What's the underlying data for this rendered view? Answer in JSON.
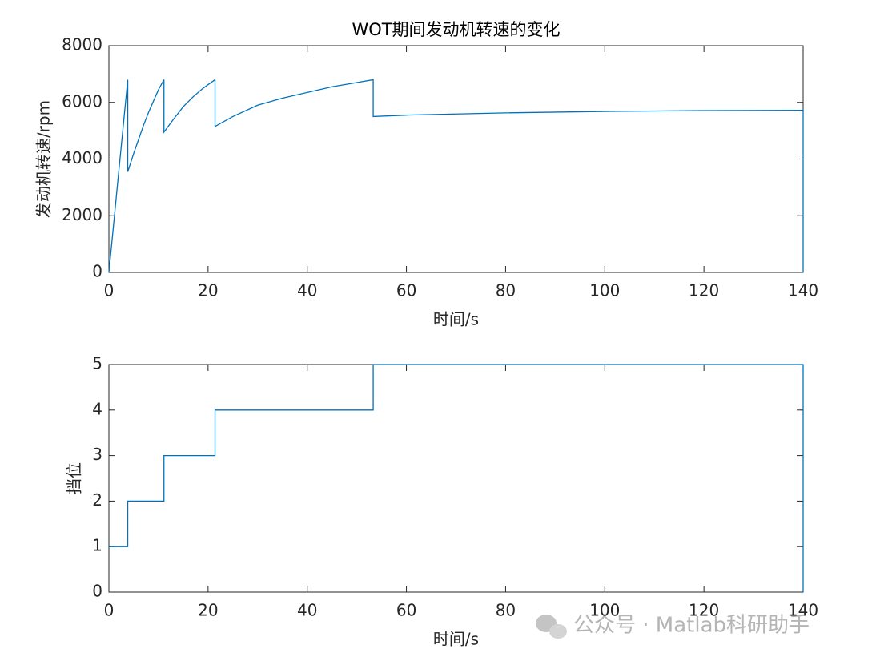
{
  "chart_data": [
    {
      "type": "line",
      "title": "WOT期间发动机转速的变化",
      "xlabel": "时间/s",
      "ylabel": "发动机转速/rpm",
      "x": [
        0,
        3.8,
        3.8,
        5,
        6,
        7,
        8,
        9,
        10,
        11.1,
        11.1,
        13,
        15,
        17,
        19,
        21.4,
        21.4,
        25,
        30,
        35,
        40,
        45,
        50,
        53.3,
        53.3,
        60,
        80,
        100,
        120,
        140,
        140
      ],
      "values": [
        0,
        6800,
        3550,
        4200,
        4700,
        5200,
        5650,
        6050,
        6450,
        6800,
        4950,
        5400,
        5850,
        6200,
        6500,
        6800,
        5150,
        5500,
        5900,
        6150,
        6350,
        6550,
        6700,
        6800,
        5500,
        5550,
        5630,
        5680,
        5710,
        5720,
        0
      ],
      "color": "#0072bd",
      "xlim": [
        0,
        140
      ],
      "xticks": [
        0,
        20,
        40,
        60,
        80,
        100,
        120,
        140
      ],
      "ylim": [
        0,
        8000
      ],
      "yticks": [
        0,
        2000,
        4000,
        6000,
        8000
      ]
    },
    {
      "type": "line",
      "xlabel": "时间/s",
      "ylabel": "挡位",
      "x": [
        0,
        3.8,
        3.8,
        11.1,
        11.1,
        21.4,
        21.4,
        53.3,
        53.3,
        140,
        140
      ],
      "values": [
        1,
        1,
        2,
        2,
        3,
        3,
        4,
        4,
        5,
        5,
        0
      ],
      "color": "#0072bd",
      "xlim": [
        0,
        140
      ],
      "xticks": [
        0,
        20,
        40,
        60,
        80,
        100,
        120,
        140
      ],
      "ylim": [
        0,
        5
      ],
      "yticks": [
        0,
        1,
        2,
        3,
        4,
        5
      ]
    }
  ],
  "watermark": "公众号 · Matlab科研助手"
}
